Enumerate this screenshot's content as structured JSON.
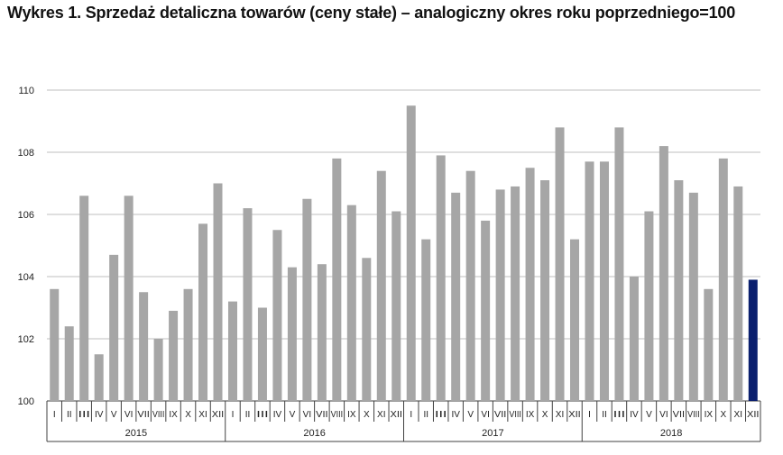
{
  "colors": {
    "bar": "#a6a6a6",
    "highlight_bar": "#0a1f6e",
    "grid": "#bfbfbf",
    "axis": "#404040",
    "text": "#222222"
  },
  "chart_data": {
    "type": "bar",
    "title": "Wykres 1. Sprzedaż detaliczna towarów (ceny stałe) – analogiczny okres roku poprzedniego=100",
    "xlabel": "",
    "ylabel": "",
    "ylim": [
      100,
      110
    ],
    "yticks": [
      "100",
      "102",
      "104",
      "106",
      "108",
      "110"
    ],
    "grid": true,
    "legend": "none",
    "month_labels": [
      "I",
      "II",
      "III",
      "IV",
      "V",
      "VI",
      "VII",
      "VIII",
      "IX",
      "X",
      "XI",
      "XII"
    ],
    "years": [
      "2015",
      "2016",
      "2017",
      "2018"
    ],
    "highlight": "last",
    "values": [
      103.6,
      102.4,
      106.6,
      101.5,
      104.7,
      106.6,
      103.5,
      102.0,
      102.9,
      103.6,
      105.7,
      107.0,
      103.2,
      106.2,
      103.0,
      105.5,
      104.3,
      106.5,
      104.4,
      107.8,
      106.3,
      104.6,
      107.4,
      106.1,
      109.5,
      105.2,
      107.9,
      106.7,
      107.4,
      105.8,
      106.8,
      106.9,
      107.5,
      107.1,
      108.8,
      105.2,
      107.7,
      107.7,
      108.8,
      104.0,
      106.1,
      108.2,
      107.1,
      106.7,
      103.6,
      107.8,
      106.9,
      103.9
    ]
  }
}
